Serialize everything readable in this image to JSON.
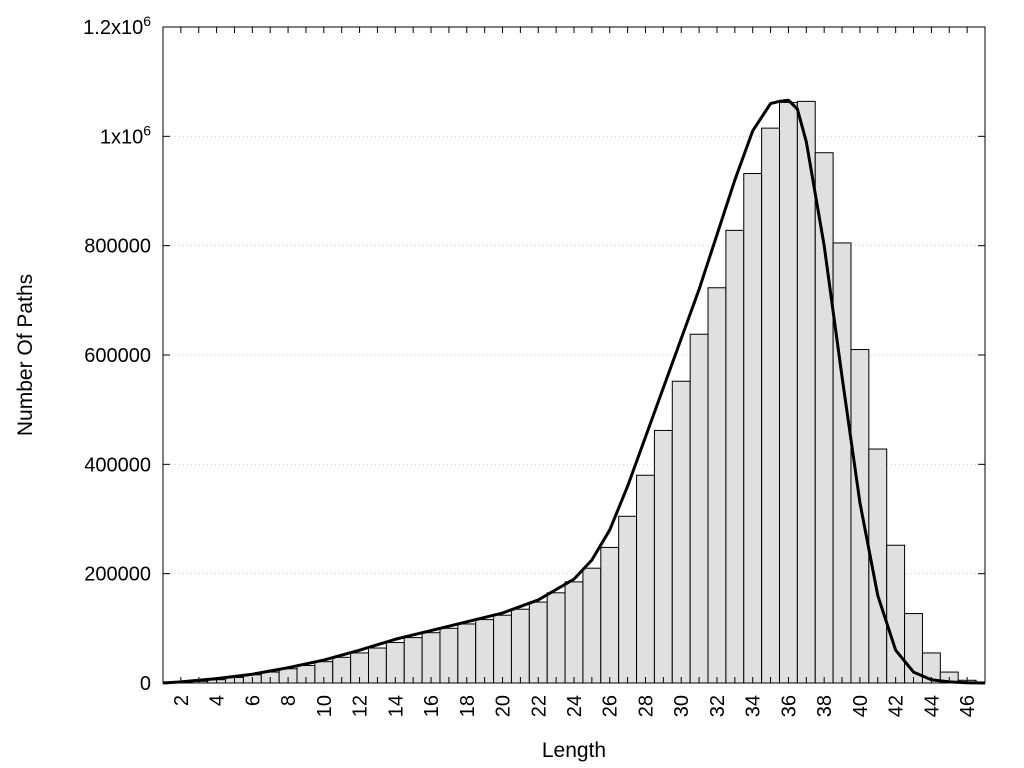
{
  "chart_data": {
    "type": "bar",
    "xlabel": "Length",
    "ylabel": "Number Of Paths",
    "ylim": [
      0,
      1200000
    ],
    "xlim": [
      1,
      47
    ],
    "grid": {
      "horizontal": true,
      "style": "dotted"
    },
    "y_ticks": [
      {
        "value": 0,
        "label": "0"
      },
      {
        "value": 200000,
        "label": "200000"
      },
      {
        "value": 400000,
        "label": "400000"
      },
      {
        "value": 600000,
        "label": "600000"
      },
      {
        "value": 800000,
        "label": "800000"
      },
      {
        "value": 1000000,
        "base": "1x10",
        "exp": "6"
      },
      {
        "value": 1200000,
        "base": "1.2x10",
        "exp": "6"
      }
    ],
    "x_tick_labels": [
      "2",
      "4",
      "6",
      "8",
      "10",
      "12",
      "14",
      "16",
      "18",
      "20",
      "22",
      "24",
      "26",
      "28",
      "30",
      "32",
      "34",
      "36",
      "38",
      "40",
      "42",
      "44",
      "46"
    ],
    "bars": {
      "x": [
        2,
        3,
        4,
        5,
        6,
        7,
        8,
        9,
        10,
        11,
        12,
        13,
        14,
        15,
        16,
        17,
        18,
        19,
        20,
        21,
        22,
        23,
        24,
        25,
        26,
        27,
        28,
        29,
        30,
        31,
        32,
        33,
        34,
        35,
        36,
        37,
        38,
        39,
        40,
        41,
        42,
        43,
        44,
        45,
        46
      ],
      "values": [
        1000,
        3000,
        6000,
        10000,
        15000,
        20000,
        26000,
        32000,
        39000,
        47000,
        55000,
        64000,
        74000,
        83000,
        92000,
        100000,
        108000,
        116000,
        124000,
        135000,
        148000,
        165000,
        185000,
        210000,
        248000,
        305000,
        380000,
        462000,
        552000,
        638000,
        723000,
        828000,
        932000,
        1015000,
        1062000,
        1064000,
        970000,
        805000,
        610000,
        428000,
        252000,
        127000,
        55000,
        20000,
        5000
      ],
      "fill": "#e0e0e0",
      "stroke": "#000000"
    },
    "curve": {
      "x": [
        1,
        2,
        4,
        6,
        8,
        10,
        12,
        14,
        16,
        18,
        20,
        22,
        24,
        25,
        26,
        27,
        28,
        29,
        30,
        31,
        32,
        33,
        34,
        35,
        35.5,
        36,
        36.5,
        37,
        38,
        39,
        40,
        41,
        42,
        43,
        44,
        45,
        46,
        47
      ],
      "values": [
        0,
        2000,
        8000,
        16000,
        28000,
        42000,
        60000,
        80000,
        96000,
        112000,
        128000,
        152000,
        190000,
        225000,
        280000,
        360000,
        450000,
        540000,
        630000,
        720000,
        820000,
        920000,
        1010000,
        1060000,
        1064000,
        1066000,
        1050000,
        990000,
        800000,
        560000,
        330000,
        160000,
        60000,
        20000,
        6000,
        2000,
        500,
        0
      ],
      "stroke": "#000000"
    }
  }
}
